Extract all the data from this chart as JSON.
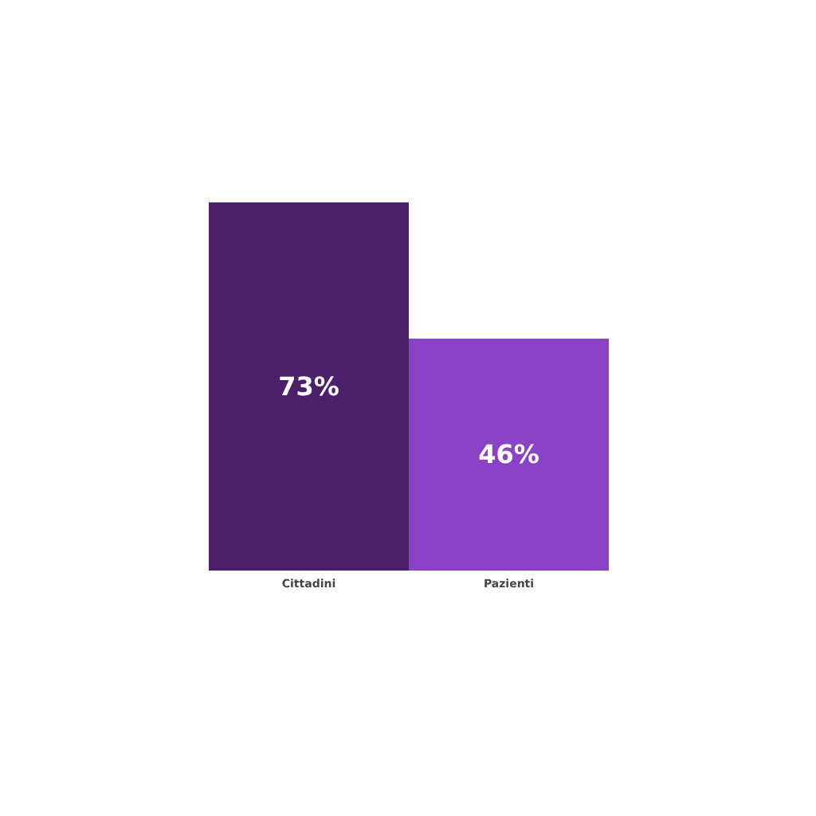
{
  "chart_data": {
    "type": "bar",
    "categories": [
      "Cittadini",
      "Pazienti"
    ],
    "values": [
      73,
      46
    ],
    "value_labels": [
      "73%",
      "46%"
    ],
    "colors": [
      "#4b216b",
      "#8c42c6"
    ]
  }
}
